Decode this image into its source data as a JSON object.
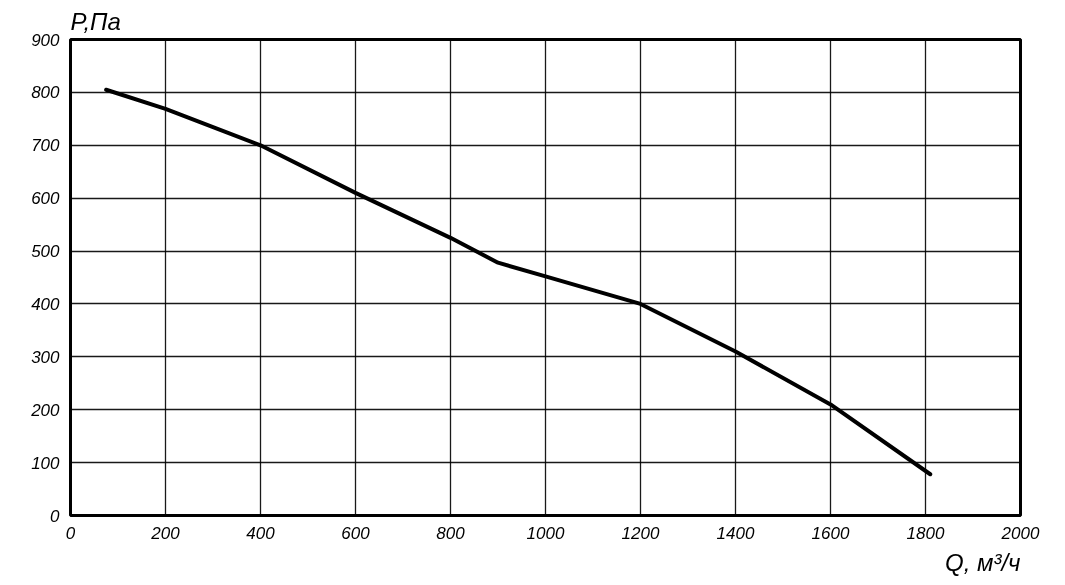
{
  "chart_data": {
    "type": "line",
    "xlabel": "Q, м³/ч",
    "ylabel": "P,Па",
    "x": [
      75,
      200,
      400,
      600,
      800,
      900,
      1000,
      1200,
      1400,
      1600,
      1810
    ],
    "series": [
      {
        "color": "#000000",
        "values": [
          805,
          769,
          700,
          610,
          525,
          478,
          452,
          400,
          310,
          210,
          78
        ]
      }
    ],
    "xlim": [
      0,
      2000
    ],
    "ylim": [
      0,
      900
    ],
    "xticks": [
      0,
      200,
      400,
      600,
      800,
      1000,
      1200,
      1400,
      1600,
      1800,
      2000
    ],
    "yticks": [
      0,
      100,
      200,
      300,
      400,
      500,
      600,
      700,
      800,
      900
    ],
    "grid": true,
    "marker": "none",
    "line_style": "solid"
  }
}
